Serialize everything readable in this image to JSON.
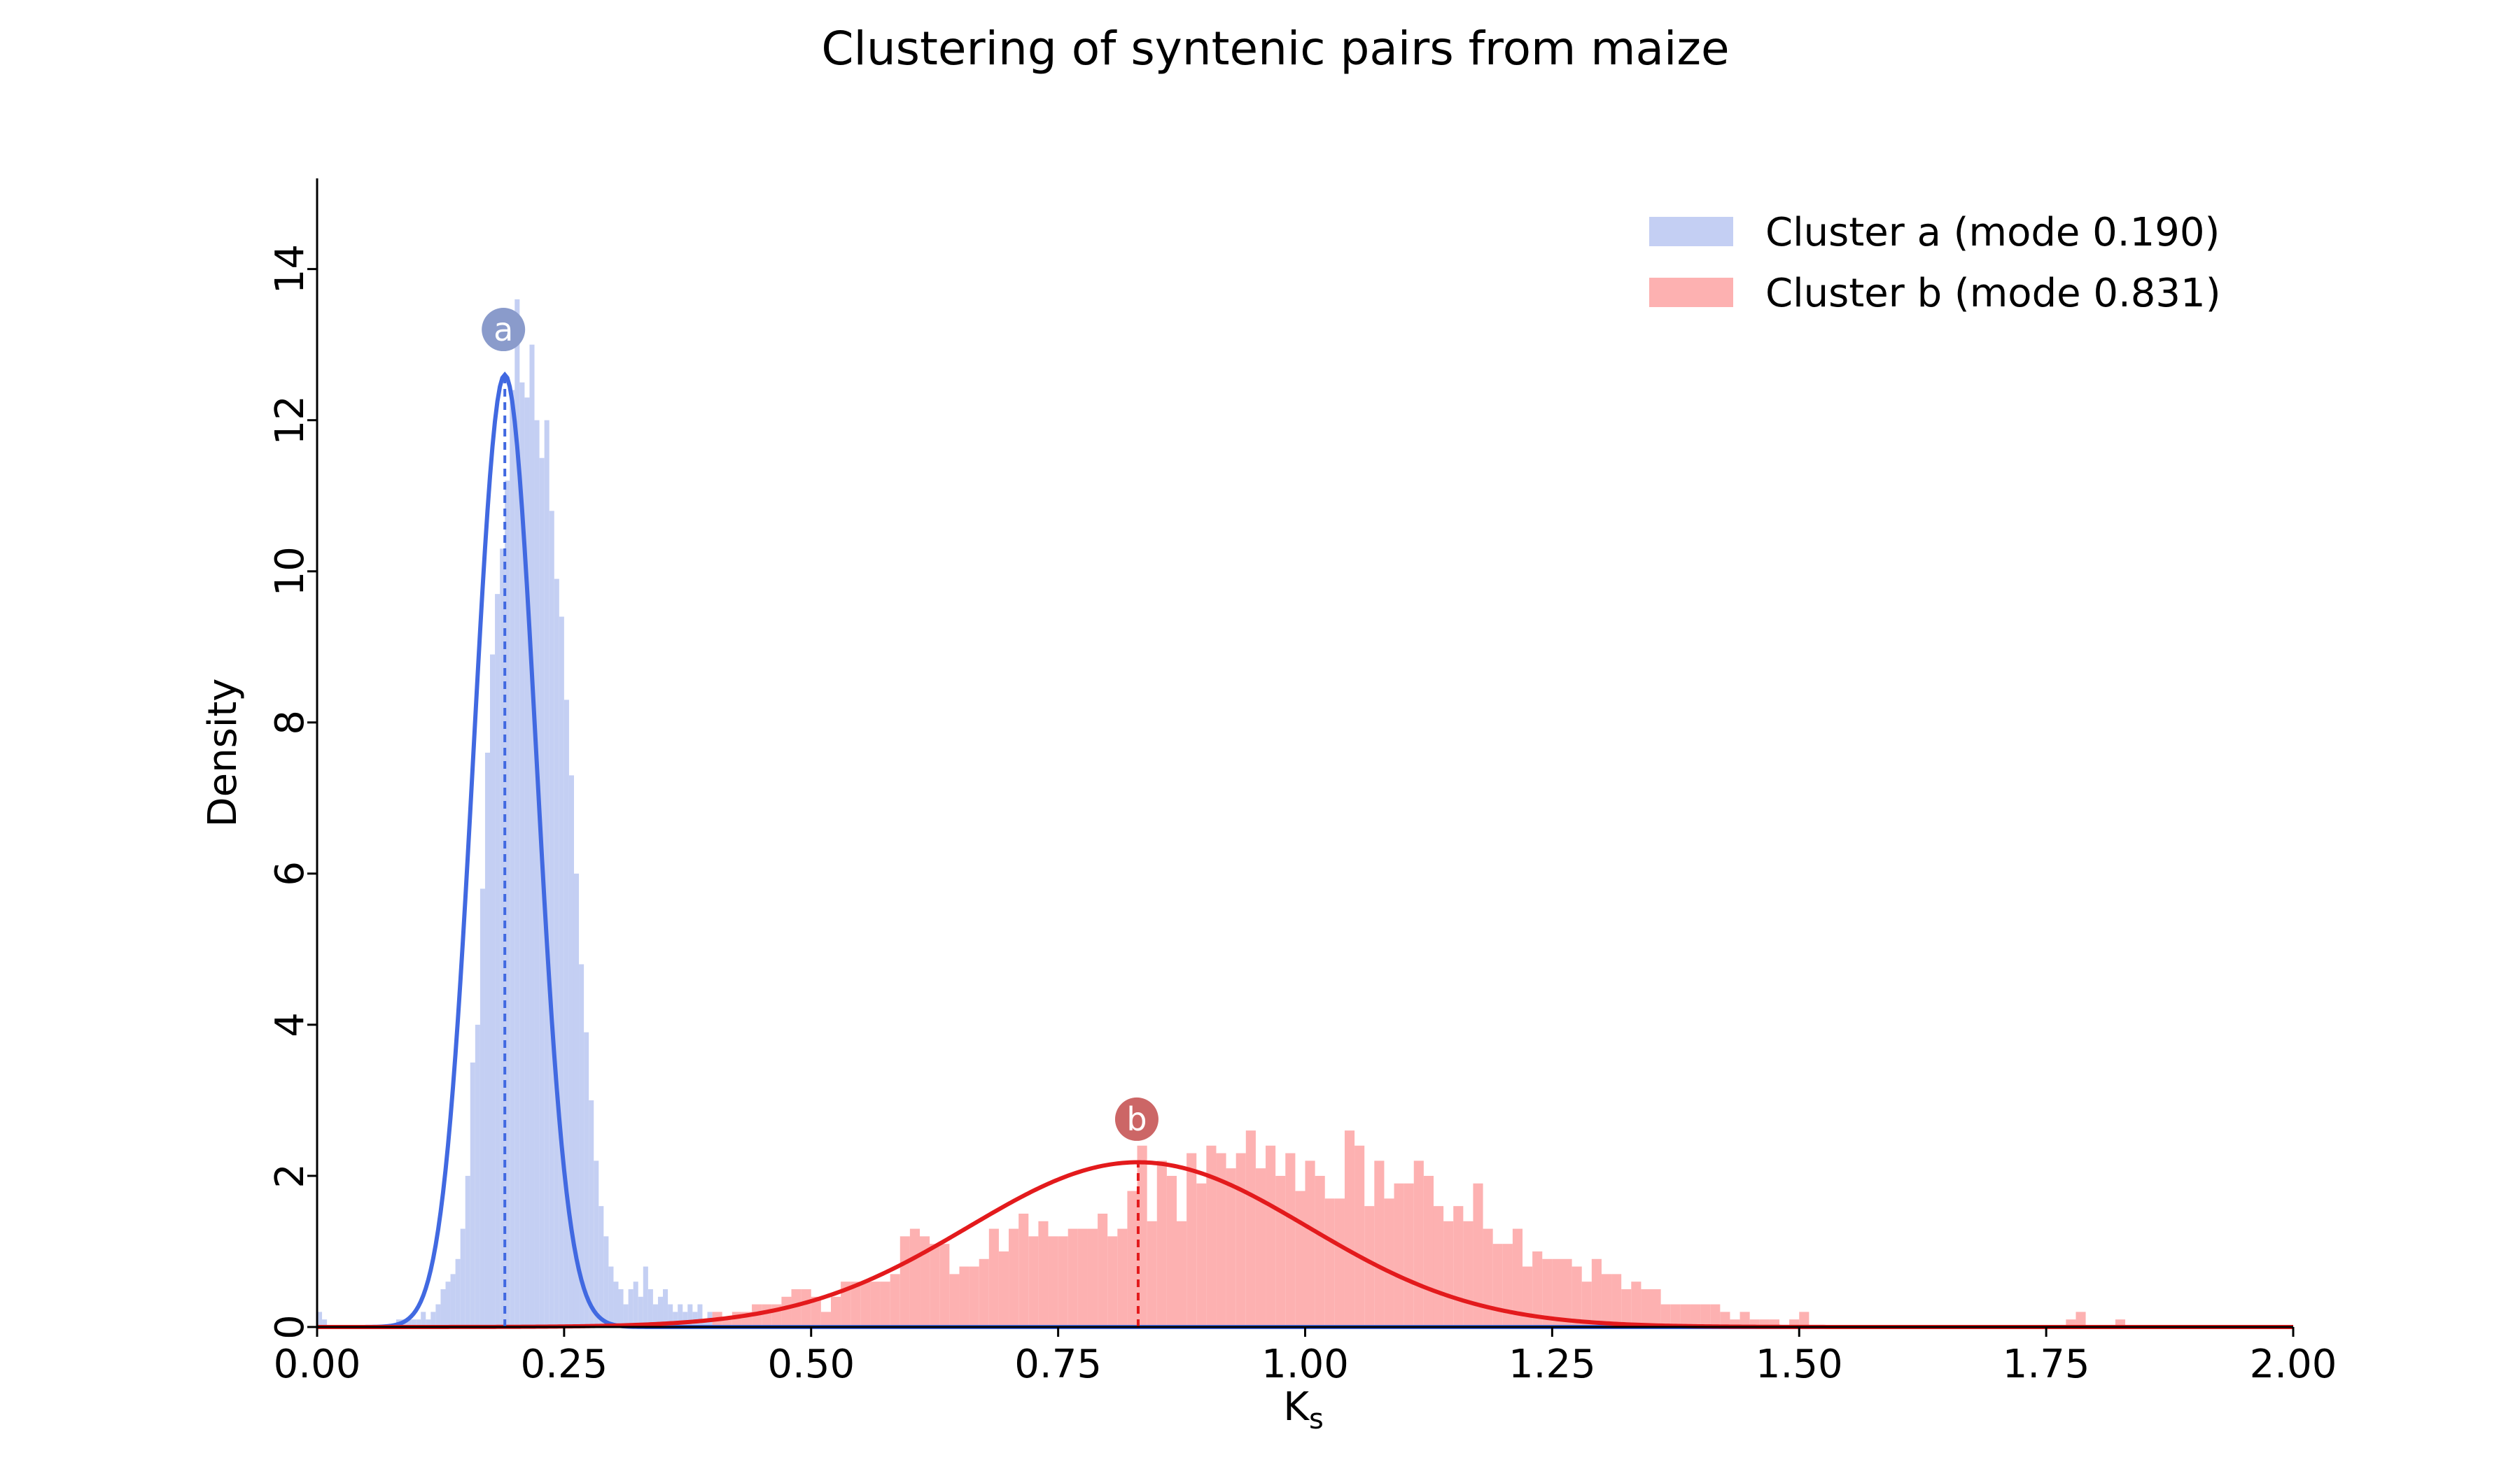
{
  "chart_data": {
    "type": "histogram",
    "title": "Clustering of syntenic pairs from maize",
    "xlabel": "K",
    "xlabel_subscript": "s",
    "ylabel": "Density",
    "xlim": [
      0,
      2
    ],
    "ylim": [
      0,
      15.2
    ],
    "x_ticks": [
      "0.00",
      "0.25",
      "0.50",
      "0.75",
      "1.00",
      "1.25",
      "1.50",
      "1.75",
      "2.00"
    ],
    "y_ticks": [
      "0",
      "2",
      "4",
      "6",
      "8",
      "10",
      "12",
      "14"
    ],
    "grid": false,
    "legend_placement": "top-right",
    "series": [
      {
        "name": "Cluster a (mode 0.190)",
        "peak_label": "a",
        "hist_color": "#c4cff3",
        "curve_color": "#4169e1",
        "mode_line_color": "#4169e1",
        "marker_color": "#8a9bcb",
        "bin_width": 0.005,
        "bin_start": 0.0,
        "mode": 0.19,
        "marker_y": 13.2,
        "curve": {
          "mean": 0.19,
          "sd": 0.0316,
          "peak": 12.6
        },
        "densities": [
          0.2,
          0.1,
          0.0,
          0.0,
          0.0,
          0.0,
          0.0,
          0.0,
          0.0,
          0.0,
          0.0,
          0.0,
          0.0,
          0.0,
          0.0,
          0.0,
          0.1,
          0.1,
          0.1,
          0.1,
          0.1,
          0.2,
          0.1,
          0.2,
          0.3,
          0.5,
          0.6,
          0.7,
          0.9,
          1.3,
          2.0,
          3.5,
          4.0,
          5.8,
          7.6,
          8.9,
          9.7,
          10.3,
          11.2,
          12.4,
          13.6,
          12.5,
          12.3,
          13.0,
          12.0,
          11.5,
          12.0,
          10.8,
          9.9,
          9.4,
          8.3,
          7.3,
          6.0,
          4.8,
          3.9,
          3.0,
          2.2,
          1.6,
          1.2,
          0.8,
          0.6,
          0.5,
          0.3,
          0.5,
          0.6,
          0.4,
          0.8,
          0.5,
          0.3,
          0.4,
          0.5,
          0.3,
          0.2,
          0.3,
          0.2,
          0.3,
          0.2,
          0.3,
          0.1,
          0.2
        ]
      },
      {
        "name": "Cluster b (mode 0.831)",
        "peak_label": "b",
        "hist_color": "#fdb1b1",
        "curve_color": "#e31a1c",
        "mode_line_color": "#e31a1c",
        "marker_color": "#cc6666",
        "bin_width": 0.01,
        "bin_start": 0.4,
        "mode": 0.831,
        "marker_y": 2.75,
        "curve": {
          "mean": 0.831,
          "sd": 0.172,
          "peak": 2.18
        },
        "densities": [
          0.2,
          0.1,
          0.2,
          0.2,
          0.3,
          0.3,
          0.3,
          0.4,
          0.5,
          0.5,
          0.4,
          0.2,
          0.4,
          0.6,
          0.6,
          0.6,
          0.6,
          0.6,
          0.7,
          1.2,
          1.3,
          1.2,
          1.1,
          1.1,
          0.7,
          0.8,
          0.8,
          0.9,
          1.3,
          1.0,
          1.3,
          1.5,
          1.2,
          1.4,
          1.2,
          1.2,
          1.3,
          1.3,
          1.3,
          1.5,
          1.2,
          1.3,
          1.8,
          2.4,
          1.4,
          2.2,
          2.0,
          1.4,
          2.3,
          1.9,
          2.4,
          2.3,
          2.1,
          2.3,
          2.6,
          2.1,
          2.4,
          2.0,
          2.3,
          1.8,
          2.2,
          2.0,
          1.7,
          1.7,
          2.6,
          2.4,
          1.6,
          2.2,
          1.7,
          1.9,
          1.9,
          2.2,
          2.0,
          1.6,
          1.4,
          1.6,
          1.4,
          1.9,
          1.3,
          1.1,
          1.1,
          1.3,
          0.8,
          1.0,
          0.9,
          0.9,
          0.9,
          0.8,
          0.6,
          0.9,
          0.7,
          0.7,
          0.5,
          0.6,
          0.5,
          0.5,
          0.3,
          0.3,
          0.3,
          0.3,
          0.3,
          0.3,
          0.2,
          0.1,
          0.2,
          0.1,
          0.1,
          0.1,
          0.0,
          0.1,
          0.2,
          0.0,
          0.0,
          0.0,
          0.0,
          0.0,
          0.0,
          0.0,
          0.0,
          0.0,
          0.0,
          0.0,
          0.0,
          0.0,
          0.0,
          0.0,
          0.0,
          0.0,
          0.0,
          0.0,
          0.0,
          0.0,
          0.0,
          0.0,
          0.0,
          0.0,
          0.0,
          0.1,
          0.2,
          0.0,
          0.0,
          0.0,
          0.1,
          0.0,
          0.0,
          0.0
        ]
      }
    ]
  }
}
